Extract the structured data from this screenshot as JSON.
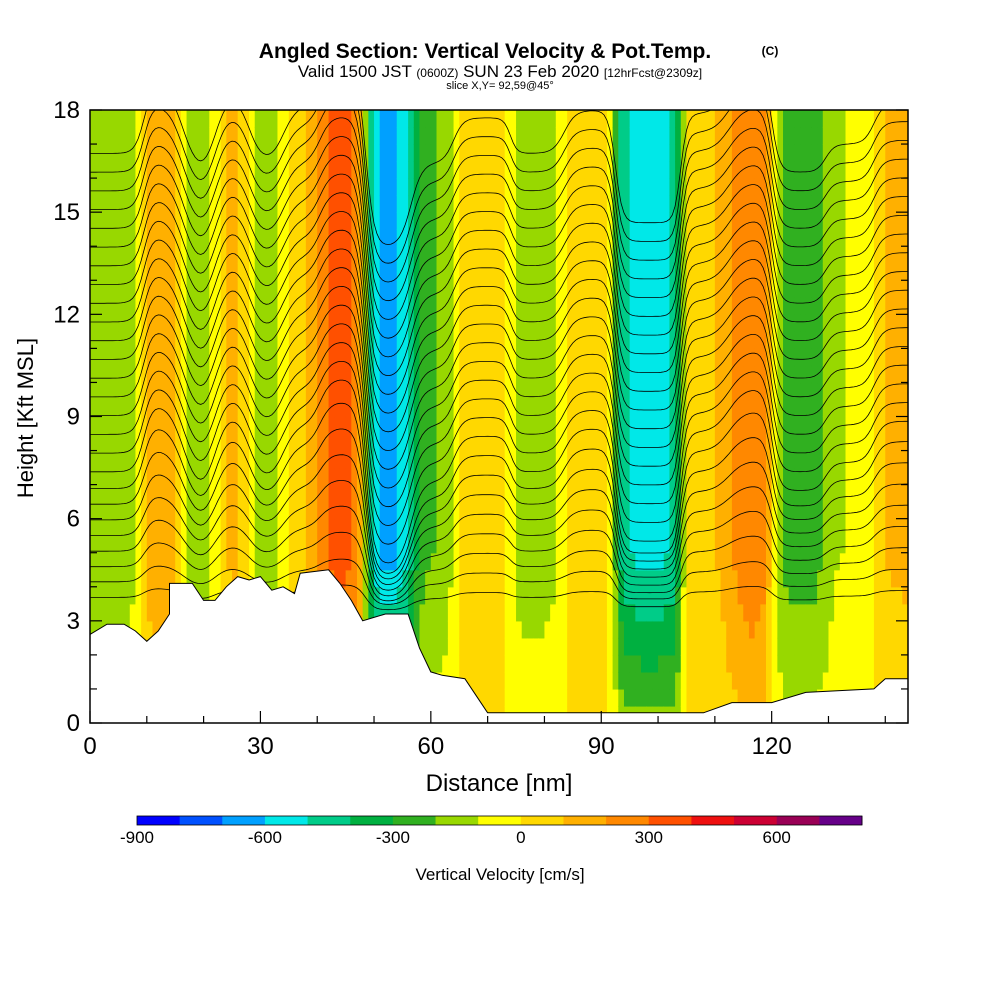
{
  "chart_data": {
    "type": "heatmap",
    "title": "Angled Section: Vertical Velocity & Pot.Temp.",
    "title_mark": "(C)",
    "subtitle_parts": [
      "Valid 1500 JST",
      "(0600Z)",
      "SUN 23 Feb 2020",
      "[12hrFcst@2309z]"
    ],
    "slice_label": "slice X,Y= 92,59@45°",
    "xlabel": "Distance [nm]",
    "ylabel": "Height [Kft MSL]",
    "xlim": [
      0,
      144
    ],
    "ylim": [
      0,
      18
    ],
    "x_ticks": [
      0,
      30,
      60,
      90,
      120
    ],
    "y_ticks": [
      0,
      3,
      6,
      9,
      12,
      15,
      18
    ],
    "colorbar": {
      "label": "Vertical Velocity [cm/s]",
      "range": [
        -900,
        800
      ],
      "ticks": [
        -900,
        -600,
        -300,
        0,
        300,
        600
      ],
      "colors": [
        "#0000ff",
        "#0050ff",
        "#00a0ff",
        "#00e8e8",
        "#00cc88",
        "#00b040",
        "#30b020",
        "#98d800",
        "#ffff00",
        "#ffd800",
        "#ffb000",
        "#ff8800",
        "#ff5000",
        "#ee1010",
        "#cc0033",
        "#990055",
        "#660088"
      ]
    },
    "vertical_velocity_columns": [
      {
        "x": 5,
        "w": -150
      },
      {
        "x": 14,
        "w": 220
      },
      {
        "x": 19,
        "w": -280
      },
      {
        "x": 25,
        "w": 170
      },
      {
        "x": 31,
        "w": -200
      },
      {
        "x": 37,
        "w": 100
      },
      {
        "x": 44,
        "w": 350
      },
      {
        "x": 53,
        "w": -650
      },
      {
        "x": 60,
        "w": -200
      },
      {
        "x": 68,
        "w": 40
      },
      {
        "x": 80,
        "w": -150
      },
      {
        "x": 87,
        "w": 80
      },
      {
        "x": 98,
        "w": -520
      },
      {
        "x": 110,
        "w": 60
      },
      {
        "x": 115,
        "w": 300
      },
      {
        "x": 125,
        "w": -250
      },
      {
        "x": 134,
        "w": -100
      },
      {
        "x": 142,
        "w": 120
      }
    ],
    "terrain_kft": [
      [
        0,
        2.6
      ],
      [
        3,
        2.9
      ],
      [
        6,
        2.9
      ],
      [
        8,
        2.7
      ],
      [
        10,
        2.4
      ],
      [
        12,
        2.7
      ],
      [
        14,
        3.2
      ],
      [
        14,
        4.1
      ],
      [
        18,
        4.1
      ],
      [
        20,
        3.6
      ],
      [
        22,
        3.6
      ],
      [
        24,
        4.0
      ],
      [
        26,
        4.3
      ],
      [
        28,
        4.2
      ],
      [
        30,
        4.3
      ],
      [
        32,
        3.9
      ],
      [
        34,
        4.0
      ],
      [
        36,
        3.8
      ],
      [
        37,
        4.4
      ],
      [
        42,
        4.5
      ],
      [
        44,
        4.1
      ],
      [
        46,
        3.6
      ],
      [
        48,
        3.0
      ],
      [
        50,
        3.1
      ],
      [
        52,
        3.2
      ],
      [
        56,
        3.2
      ],
      [
        58,
        2.2
      ],
      [
        60,
        1.5
      ],
      [
        62,
        1.4
      ],
      [
        66,
        1.3
      ],
      [
        68,
        0.8
      ],
      [
        70,
        0.3
      ],
      [
        108,
        0.3
      ],
      [
        113,
        0.6
      ],
      [
        120,
        0.6
      ],
      [
        126,
        0.9
      ],
      [
        138,
        1.0
      ],
      [
        140,
        1.3
      ],
      [
        144,
        1.3
      ]
    ],
    "isentrope_count": 26
  }
}
